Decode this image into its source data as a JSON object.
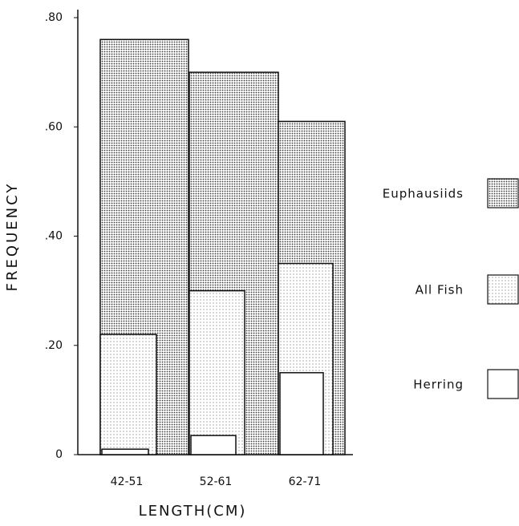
{
  "chart_data": {
    "type": "bar",
    "x_label": "LENGTH(CM)",
    "y_label": "FREQUENCY",
    "categories": [
      "42-51",
      "52-61",
      "62-71"
    ],
    "series": [
      {
        "name": "Euphausiids",
        "color": "#3a3a3a",
        "values": [
          0.76,
          0.7,
          0.61
        ]
      },
      {
        "name": "All Fish",
        "color": "#9a9a9a",
        "values": [
          0.22,
          0.3,
          0.35
        ]
      },
      {
        "name": "Herring",
        "color": "#ffffff",
        "values": [
          0.01,
          0.035,
          0.15
        ]
      }
    ],
    "ylim": [
      0,
      0.8
    ],
    "yticks": [
      0,
      {
        "value": 0.2,
        "label": ".20"
      },
      {
        "value": 0.4,
        "label": ".40"
      },
      {
        "value": 0.6,
        "label": ".60"
      },
      {
        "value": 0.8,
        "label": ".80"
      }
    ],
    "legend": "right"
  }
}
